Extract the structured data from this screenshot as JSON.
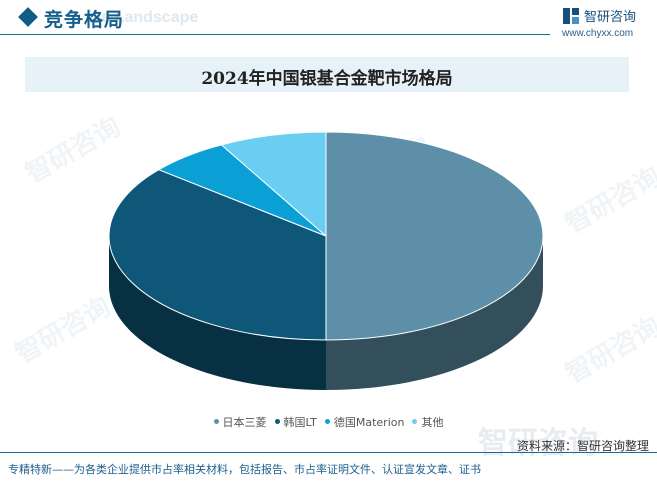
{
  "header": {
    "section_title": "竞争格局",
    "section_title_en": "ive Landscape",
    "brand_name": "智研咨询",
    "brand_url": "www.chyxx.com"
  },
  "watermark": {
    "text": "智研咨询"
  },
  "colors": {
    "accent": "#15608a",
    "slice_japan": "#5e8fa8",
    "slice_korea": "#0e5779",
    "slice_germany": "#0aa0d6",
    "slice_other": "#6acdf2"
  },
  "chart_data": {
    "type": "pie",
    "title": "2024年中国银基合金靶市场格局",
    "categories": [
      "日本三菱",
      "韩国LT",
      "德国Materion",
      "其他"
    ],
    "values": [
      50,
      36,
      6,
      8
    ],
    "legend_position": "bottom"
  },
  "footer": {
    "source": "资料来源：智研咨询整理",
    "tagline": "专精特新——为各类企业提供市占率相关材料，包括报告、市占率证明文件、认证宣发文章、证书"
  }
}
